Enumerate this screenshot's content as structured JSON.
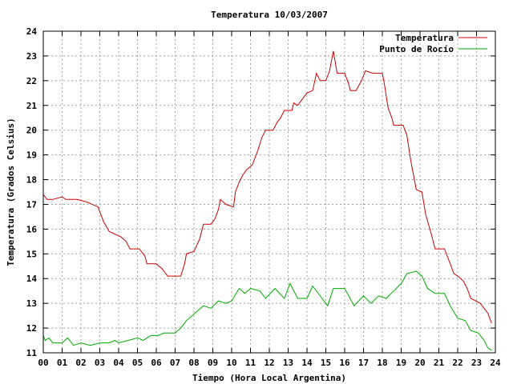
{
  "chart_data": {
    "type": "line",
    "title": "Temperatura 10/03/2007",
    "xlabel": "Tiempo (Hora Local Argentina)",
    "ylabel": "Temperatura (Grados Celsius)",
    "xlim": [
      0,
      24
    ],
    "ylim": [
      11,
      24
    ],
    "x_ticks": [
      "00",
      "01",
      "02",
      "03",
      "04",
      "05",
      "06",
      "07",
      "08",
      "09",
      "10",
      "11",
      "12",
      "13",
      "14",
      "15",
      "16",
      "17",
      "18",
      "19",
      "20",
      "21",
      "22",
      "23",
      "24"
    ],
    "y_ticks": [
      "11",
      "12",
      "13",
      "14",
      "15",
      "16",
      "17",
      "18",
      "19",
      "20",
      "21",
      "22",
      "23",
      "24"
    ],
    "grid": true,
    "legend_position": "top-right",
    "series": [
      {
        "name": "Temperatura",
        "color": "#cc0000",
        "points": [
          [
            0,
            17.4
          ],
          [
            0.2,
            17.2
          ],
          [
            0.5,
            17.2
          ],
          [
            1.0,
            17.3
          ],
          [
            1.2,
            17.2
          ],
          [
            1.8,
            17.2
          ],
          [
            2.3,
            17.1
          ],
          [
            2.9,
            16.9
          ],
          [
            3.2,
            16.3
          ],
          [
            3.5,
            15.9
          ],
          [
            4.1,
            15.7
          ],
          [
            4.4,
            15.5
          ],
          [
            4.6,
            15.2
          ],
          [
            5.1,
            15.2
          ],
          [
            5.4,
            14.9
          ],
          [
            5.5,
            14.6
          ],
          [
            6.0,
            14.6
          ],
          [
            6.3,
            14.4
          ],
          [
            6.5,
            14.2
          ],
          [
            6.6,
            14.1
          ],
          [
            7.3,
            14.1
          ],
          [
            7.5,
            14.6
          ],
          [
            7.6,
            15.0
          ],
          [
            8.0,
            15.1
          ],
          [
            8.3,
            15.6
          ],
          [
            8.5,
            16.2
          ],
          [
            8.9,
            16.2
          ],
          [
            9.1,
            16.4
          ],
          [
            9.3,
            16.8
          ],
          [
            9.4,
            17.2
          ],
          [
            9.7,
            17.0
          ],
          [
            10.1,
            16.9
          ],
          [
            10.2,
            17.5
          ],
          [
            10.4,
            17.9
          ],
          [
            10.6,
            18.2
          ],
          [
            10.8,
            18.4
          ],
          [
            11.1,
            18.6
          ],
          [
            11.4,
            19.2
          ],
          [
            11.6,
            19.7
          ],
          [
            11.8,
            20.0
          ],
          [
            12.2,
            20.0
          ],
          [
            12.4,
            20.3
          ],
          [
            12.6,
            20.5
          ],
          [
            12.8,
            20.8
          ],
          [
            13.2,
            20.8
          ],
          [
            13.3,
            21.1
          ],
          [
            13.5,
            21.0
          ],
          [
            13.7,
            21.2
          ],
          [
            14.0,
            21.5
          ],
          [
            14.3,
            21.6
          ],
          [
            14.5,
            22.3
          ],
          [
            14.7,
            22.0
          ],
          [
            15.0,
            22.0
          ],
          [
            15.2,
            22.4
          ],
          [
            15.4,
            23.2
          ],
          [
            15.6,
            22.3
          ],
          [
            16.0,
            22.3
          ],
          [
            16.2,
            21.9
          ],
          [
            16.3,
            21.6
          ],
          [
            16.6,
            21.6
          ],
          [
            16.9,
            22.0
          ],
          [
            17.1,
            22.4
          ],
          [
            17.5,
            22.3
          ],
          [
            18.0,
            22.3
          ],
          [
            18.1,
            21.9
          ],
          [
            18.3,
            20.9
          ],
          [
            18.5,
            20.5
          ],
          [
            18.6,
            20.2
          ],
          [
            19.1,
            20.2
          ],
          [
            19.3,
            19.8
          ],
          [
            19.5,
            18.8
          ],
          [
            19.8,
            17.6
          ],
          [
            20.1,
            17.5
          ],
          [
            20.3,
            16.6
          ],
          [
            20.6,
            15.8
          ],
          [
            20.8,
            15.2
          ],
          [
            21.3,
            15.2
          ],
          [
            21.5,
            14.8
          ],
          [
            21.8,
            14.2
          ],
          [
            22.0,
            14.1
          ],
          [
            22.3,
            13.9
          ],
          [
            22.5,
            13.6
          ],
          [
            22.7,
            13.2
          ],
          [
            23.2,
            13.0
          ],
          [
            23.4,
            12.8
          ],
          [
            23.6,
            12.6
          ],
          [
            23.7,
            12.4
          ],
          [
            23.8,
            12.2
          ]
        ]
      },
      {
        "name": "Punto de Rocío",
        "color": "#00aa00",
        "points": [
          [
            0,
            11.7
          ],
          [
            0.1,
            11.5
          ],
          [
            0.3,
            11.6
          ],
          [
            0.5,
            11.4
          ],
          [
            1.0,
            11.4
          ],
          [
            1.3,
            11.6
          ],
          [
            1.6,
            11.3
          ],
          [
            2.0,
            11.4
          ],
          [
            2.5,
            11.3
          ],
          [
            3.0,
            11.4
          ],
          [
            3.5,
            11.4
          ],
          [
            3.8,
            11.5
          ],
          [
            4.0,
            11.4
          ],
          [
            4.5,
            11.5
          ],
          [
            5.0,
            11.6
          ],
          [
            5.3,
            11.5
          ],
          [
            5.7,
            11.7
          ],
          [
            6.1,
            11.7
          ],
          [
            6.4,
            11.8
          ],
          [
            7.0,
            11.8
          ],
          [
            7.3,
            12.0
          ],
          [
            7.6,
            12.3
          ],
          [
            7.9,
            12.5
          ],
          [
            8.2,
            12.7
          ],
          [
            8.5,
            12.9
          ],
          [
            8.9,
            12.8
          ],
          [
            9.3,
            13.1
          ],
          [
            9.7,
            13.0
          ],
          [
            10.0,
            13.1
          ],
          [
            10.4,
            13.6
          ],
          [
            10.7,
            13.4
          ],
          [
            11.0,
            13.6
          ],
          [
            11.5,
            13.5
          ],
          [
            11.8,
            13.2
          ],
          [
            12.3,
            13.6
          ],
          [
            12.8,
            13.2
          ],
          [
            13.1,
            13.8
          ],
          [
            13.5,
            13.2
          ],
          [
            14.0,
            13.2
          ],
          [
            14.3,
            13.7
          ],
          [
            14.8,
            13.2
          ],
          [
            15.1,
            12.9
          ],
          [
            15.4,
            13.6
          ],
          [
            16.0,
            13.6
          ],
          [
            16.5,
            12.9
          ],
          [
            17.0,
            13.3
          ],
          [
            17.4,
            13.0
          ],
          [
            17.8,
            13.3
          ],
          [
            18.2,
            13.2
          ],
          [
            18.6,
            13.5
          ],
          [
            19.0,
            13.8
          ],
          [
            19.3,
            14.2
          ],
          [
            19.8,
            14.3
          ],
          [
            20.1,
            14.1
          ],
          [
            20.4,
            13.6
          ],
          [
            20.8,
            13.4
          ],
          [
            21.3,
            13.4
          ],
          [
            21.6,
            12.9
          ],
          [
            22.0,
            12.4
          ],
          [
            22.4,
            12.3
          ],
          [
            22.7,
            11.9
          ],
          [
            23.1,
            11.8
          ],
          [
            23.4,
            11.5
          ],
          [
            23.6,
            11.2
          ],
          [
            23.8,
            11.1
          ]
        ]
      }
    ]
  }
}
